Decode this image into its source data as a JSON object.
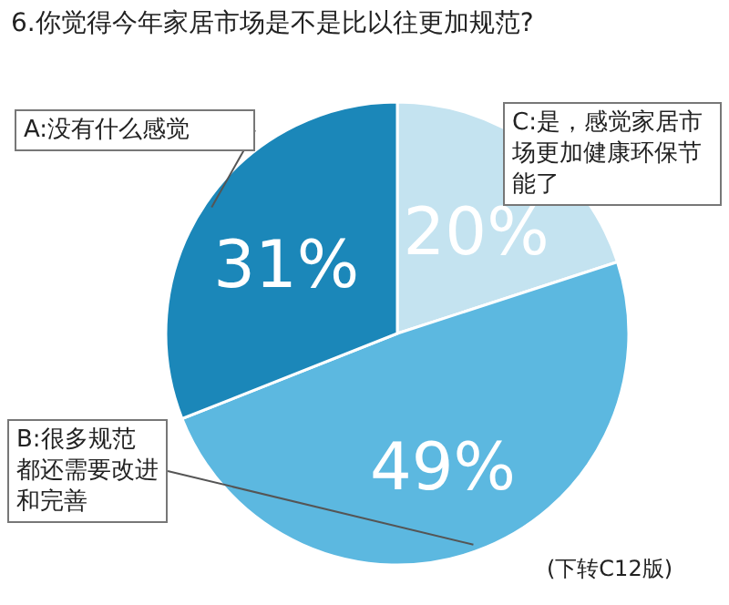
{
  "chart_data": {
    "type": "pie",
    "title": "6.你觉得今年家居市场是不是比以往更加规范?",
    "categories": [
      "C:是，感觉家居市场更加健康环保节能了",
      "B:很多规范都还需要改进和完善",
      "A:没有什么感觉"
    ],
    "values": [
      20,
      49,
      31
    ],
    "value_labels": [
      "20%",
      "49%",
      "31%"
    ],
    "colors": [
      "#c4e3f0",
      "#5cb8e0",
      "#1b87b9"
    ],
    "annotations": [
      "(下转C12版)"
    ]
  }
}
